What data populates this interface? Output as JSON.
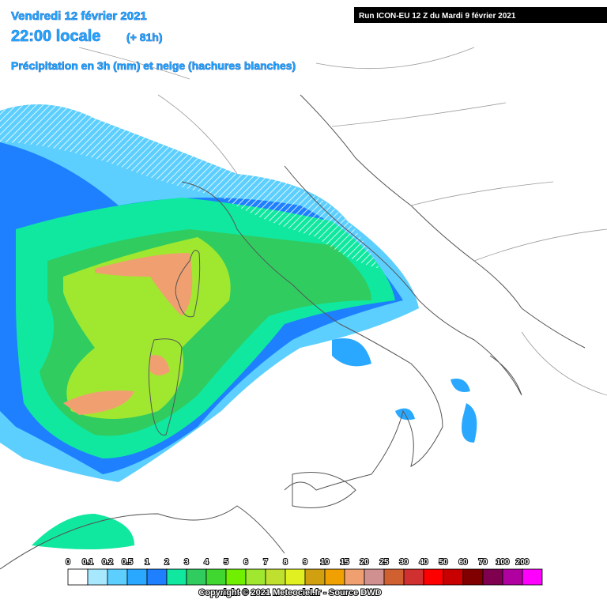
{
  "header": {
    "date": "Vendredi 12 février 2021",
    "time": "22:00 locale",
    "lead": "(+ 81h)",
    "subtitle": "Précipitation en 3h (mm) et neige (hachures blanches)",
    "run": "Run ICON-EU 12 Z du Mardi 9 février 2021"
  },
  "legend": [
    {
      "label": "0",
      "color": "#ffffff"
    },
    {
      "label": "0.1",
      "color": "#a8e8ff"
    },
    {
      "label": "0.2",
      "color": "#5ccfff"
    },
    {
      "label": "0.5",
      "color": "#2aa8ff"
    },
    {
      "label": "1",
      "color": "#1e80ff"
    },
    {
      "label": "2",
      "color": "#10e8a0"
    },
    {
      "label": "3",
      "color": "#30cc60"
    },
    {
      "label": "4",
      "color": "#40d830"
    },
    {
      "label": "5",
      "color": "#70f000"
    },
    {
      "label": "6",
      "color": "#a0e830"
    },
    {
      "label": "7",
      "color": "#c0e030"
    },
    {
      "label": "8",
      "color": "#e0f020"
    },
    {
      "label": "9",
      "color": "#d0a010"
    },
    {
      "label": "10",
      "color": "#f0a000"
    },
    {
      "label": "15",
      "color": "#f0a070"
    },
    {
      "label": "20",
      "color": "#d09090"
    },
    {
      "label": "25",
      "color": "#d06030"
    },
    {
      "label": "30",
      "color": "#d03030"
    },
    {
      "label": "40",
      "color": "#ff0000"
    },
    {
      "label": "50",
      "color": "#c80000"
    },
    {
      "label": "60",
      "color": "#800000"
    },
    {
      "label": "70",
      "color": "#800050"
    },
    {
      "label": "100",
      "color": "#b000a0"
    },
    {
      "label": "200",
      "color": "#ff00ff"
    }
  ],
  "footer": {
    "copyright": "Copyright © 2021 Meteociel.fr - Source DWD"
  }
}
